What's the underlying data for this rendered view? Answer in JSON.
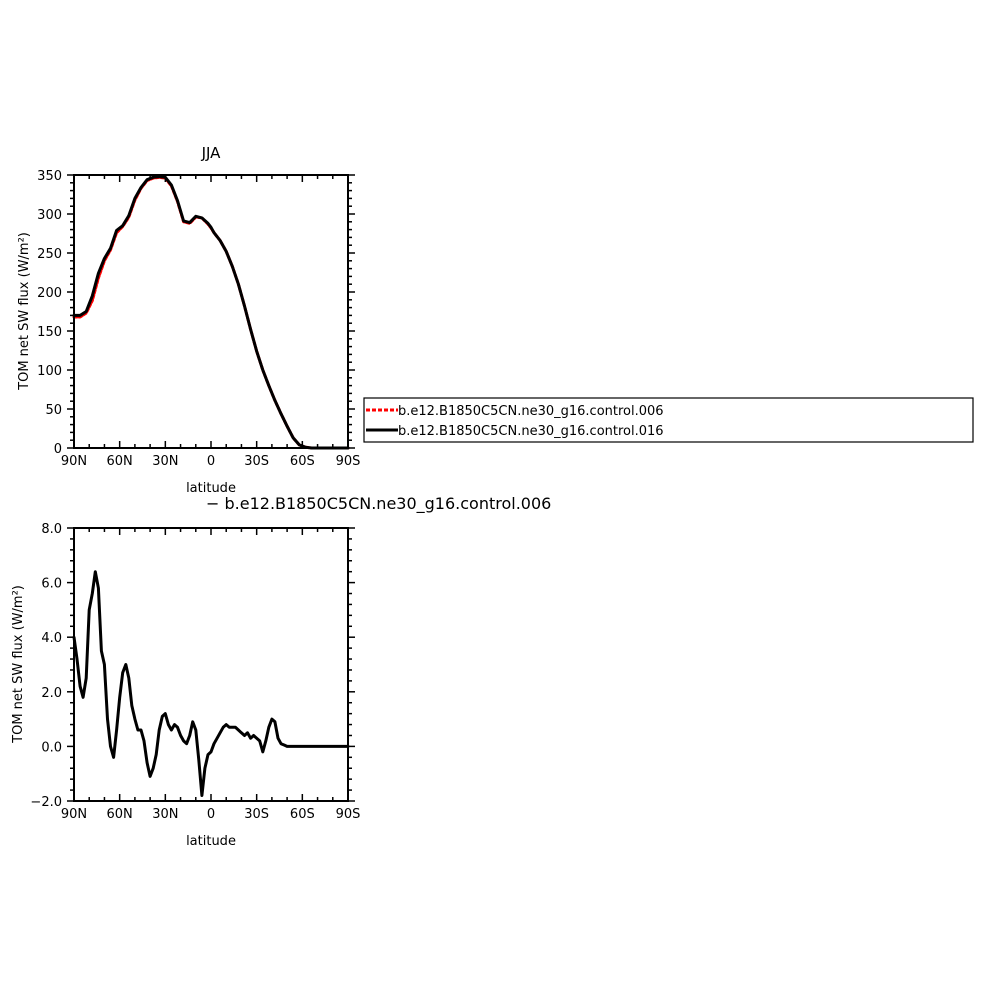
{
  "chart_data": [
    {
      "type": "line",
      "title": "JJA",
      "xlabel": "latitude",
      "ylabel": "TOM net SW flux (W/m²)",
      "xlim": [
        90,
        -90
      ],
      "ylim": [
        0,
        350
      ],
      "x_ticks": [
        90,
        60,
        30,
        0,
        -30,
        -60,
        -90
      ],
      "x_tick_labels": [
        "90N",
        "60N",
        "30N",
        "0",
        "30S",
        "60S",
        "90S"
      ],
      "y_ticks": [
        0,
        50,
        100,
        150,
        200,
        250,
        300,
        350
      ],
      "y_tick_labels": [
        "0",
        "50",
        "100",
        "150",
        "200",
        "250",
        "300",
        "350"
      ],
      "legend_position": "right",
      "series": [
        {
          "name": "b.e12.B1850C5CN.ne30_g16.control.006",
          "color": "#ff0000",
          "dash": true,
          "x": [
            90,
            86,
            82,
            78,
            74,
            70,
            66,
            62,
            58,
            54,
            50,
            46,
            42,
            38,
            34,
            30,
            26,
            22,
            18,
            14,
            10,
            6,
            2,
            0,
            -2,
            -6,
            -10,
            -14,
            -18,
            -22,
            -26,
            -30,
            -34,
            -38,
            -42,
            -46,
            -50,
            -54,
            -58,
            -62,
            -66,
            -70,
            -74,
            -78,
            -82,
            -86,
            -90
          ],
          "y": [
            168,
            168,
            173,
            189,
            218,
            240,
            254,
            276,
            284,
            296,
            318,
            333,
            343,
            346,
            347,
            346,
            336,
            316,
            290,
            288,
            296,
            295,
            287,
            282,
            276,
            266,
            252,
            233,
            210,
            182,
            152,
            124,
            100,
            80,
            61,
            44,
            28,
            13,
            4,
            1,
            0,
            0,
            0,
            0,
            0,
            0,
            0
          ]
        },
        {
          "name": "b.e12.B1850C5CN.ne30_g16.control.016",
          "color": "#000000",
          "dash": false,
          "x": [
            90,
            86,
            82,
            78,
            74,
            70,
            66,
            62,
            58,
            54,
            50,
            46,
            42,
            38,
            34,
            30,
            26,
            22,
            18,
            14,
            10,
            6,
            2,
            0,
            -2,
            -6,
            -10,
            -14,
            -18,
            -22,
            -26,
            -30,
            -34,
            -38,
            -42,
            -46,
            -50,
            -54,
            -58,
            -62,
            -66,
            -70,
            -74,
            -78,
            -82,
            -86,
            -90
          ],
          "y": [
            170,
            170,
            175,
            195,
            224,
            243,
            256,
            279,
            285,
            298,
            320,
            334,
            344,
            347,
            348,
            347,
            337,
            317,
            291,
            289,
            297,
            295,
            288,
            283,
            276,
            266,
            252,
            233,
            210,
            182,
            152,
            124,
            100,
            80,
            61,
            44,
            28,
            13,
            4,
            1,
            0,
            0,
            0,
            0,
            0,
            0,
            0
          ]
        }
      ]
    },
    {
      "type": "line",
      "title": "− b.e12.B1850C5CN.ne30_g16.control.006",
      "xlabel": "latitude",
      "ylabel": "TOM net SW flux (W/m²)",
      "xlim": [
        90,
        -90
      ],
      "ylim": [
        -2.0,
        8.0
      ],
      "x_ticks": [
        90,
        60,
        30,
        0,
        -30,
        -60,
        -90
      ],
      "x_tick_labels": [
        "90N",
        "60N",
        "30N",
        "0",
        "30S",
        "60S",
        "90S"
      ],
      "y_ticks": [
        -2.0,
        0.0,
        2.0,
        4.0,
        6.0,
        8.0
      ],
      "y_tick_labels": [
        "−2.0",
        "0.0",
        "2.0",
        "4.0",
        "6.0",
        "8.0"
      ],
      "series": [
        {
          "color": "#000000",
          "x": [
            90,
            88,
            86,
            84,
            82,
            80,
            78,
            76,
            74,
            72,
            70,
            68,
            66,
            64,
            62,
            60,
            58,
            56,
            54,
            52,
            50,
            48,
            46,
            44,
            42,
            40,
            38,
            36,
            34,
            32,
            30,
            28,
            26,
            24,
            22,
            20,
            18,
            16,
            14,
            12,
            10,
            8,
            6,
            4,
            2,
            0,
            -2,
            -4,
            -6,
            -8,
            -10,
            -12,
            -14,
            -16,
            -18,
            -20,
            -22,
            -24,
            -26,
            -28,
            -30,
            -32,
            -34,
            -36,
            -38,
            -40,
            -42,
            -44,
            -46,
            -48,
            -50,
            -52,
            -54,
            -56,
            -58,
            -60,
            -62,
            -64,
            -66,
            -68,
            -70,
            -75,
            -80,
            -85,
            -90
          ],
          "y": [
            4.0,
            3.2,
            2.2,
            1.8,
            2.5,
            5.0,
            5.6,
            6.4,
            5.8,
            3.5,
            3.0,
            1.0,
            0.0,
            -0.4,
            0.6,
            1.8,
            2.7,
            3.0,
            2.5,
            1.5,
            1.0,
            0.6,
            0.6,
            0.2,
            -0.6,
            -1.1,
            -0.8,
            -0.3,
            0.6,
            1.1,
            1.2,
            0.8,
            0.6,
            0.8,
            0.7,
            0.4,
            0.2,
            0.1,
            0.4,
            0.9,
            0.6,
            -0.5,
            -1.8,
            -0.8,
            -0.3,
            -0.2,
            0.1,
            0.3,
            0.5,
            0.7,
            0.8,
            0.7,
            0.7,
            0.7,
            0.6,
            0.5,
            0.4,
            0.5,
            0.3,
            0.4,
            0.3,
            0.2,
            -0.2,
            0.2,
            0.7,
            1.0,
            0.9,
            0.3,
            0.1,
            0.05,
            0.0,
            0.0,
            0.0,
            0.0,
            0.0,
            0.0,
            0.0,
            0.0,
            0.0,
            0.0,
            0.0,
            0.0,
            0.0,
            0.0,
            0.0
          ]
        }
      ]
    }
  ]
}
